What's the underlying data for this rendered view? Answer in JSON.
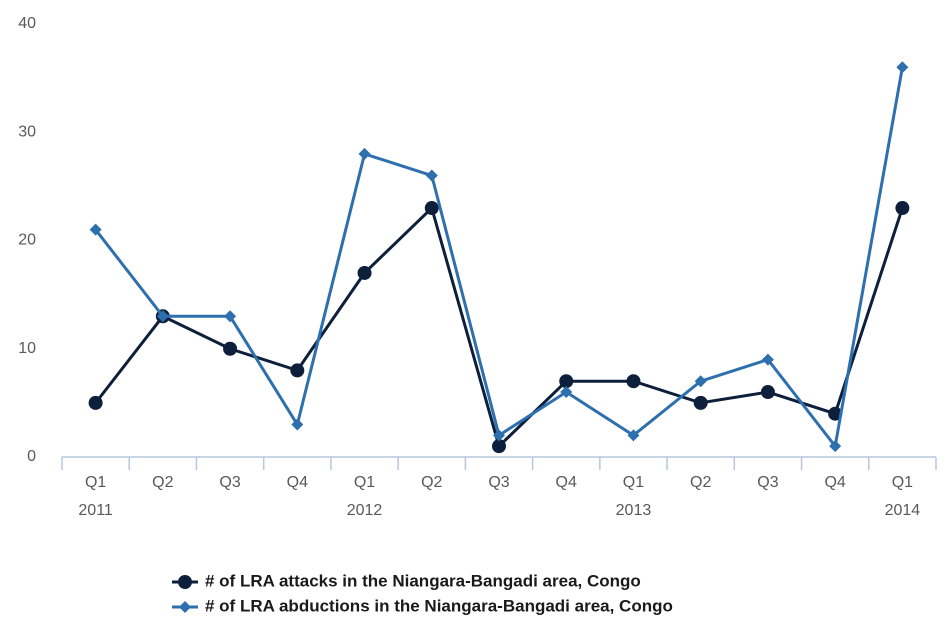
{
  "chart_data": {
    "type": "line",
    "categories": [
      "Q1",
      "Q2",
      "Q3",
      "Q4",
      "Q1",
      "Q2",
      "Q3",
      "Q4",
      "Q1",
      "Q2",
      "Q3",
      "Q4",
      "Q1"
    ],
    "year_labels": [
      "2011",
      null,
      null,
      null,
      "2012",
      null,
      null,
      null,
      "2013",
      null,
      null,
      null,
      "2014"
    ],
    "series": [
      {
        "name": "# of LRA attacks in the Niangara-Bangadi area, Congo",
        "color": "#0d1f3a",
        "marker": "circle",
        "values": [
          5,
          13,
          10,
          8,
          17,
          23,
          1,
          7,
          7,
          5,
          6,
          4,
          23
        ]
      },
      {
        "name": "# of LRA abductions in the Niangara-Bangadi area, Congo",
        "color": "#2e6fad",
        "marker": "diamond",
        "values": [
          21,
          13,
          13,
          3,
          28,
          26,
          2,
          6,
          2,
          7,
          9,
          1,
          36
        ]
      }
    ],
    "ylim": [
      0,
      40
    ],
    "yticks": [
      0,
      10,
      20,
      30,
      40
    ],
    "grid": false,
    "legend": "bottom"
  }
}
